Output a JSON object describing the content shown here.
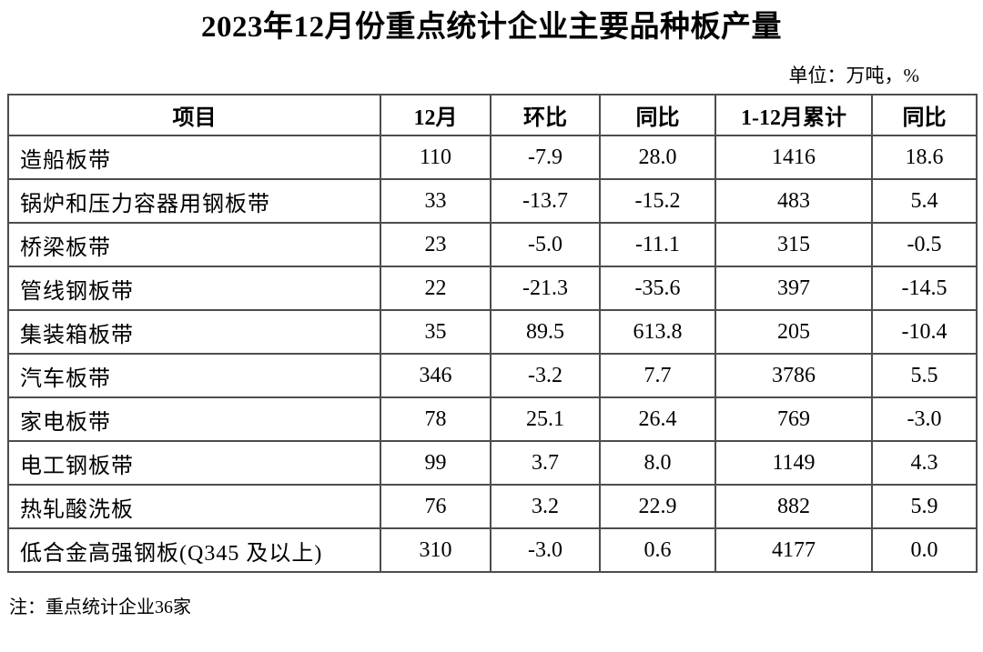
{
  "title": "2023年12月份重点统计企业主要品种板产量",
  "unit_note": "单位：万吨，%",
  "table": {
    "headers": [
      "项目",
      "12月",
      "环比",
      "同比",
      "1-12月累计",
      "同比"
    ],
    "rows": [
      [
        "造船板带",
        "110",
        "-7.9",
        "28.0",
        "1416",
        "18.6"
      ],
      [
        "锅炉和压力容器用钢板带",
        "33",
        "-13.7",
        "-15.2",
        "483",
        "5.4"
      ],
      [
        "桥梁板带",
        "23",
        "-5.0",
        "-11.1",
        "315",
        "-0.5"
      ],
      [
        "管线钢板带",
        "22",
        "-21.3",
        "-35.6",
        "397",
        "-14.5"
      ],
      [
        "集装箱板带",
        "35",
        "89.5",
        "613.8",
        "205",
        "-10.4"
      ],
      [
        "汽车板带",
        "346",
        "-3.2",
        "7.7",
        "3786",
        "5.5"
      ],
      [
        "家电板带",
        "78",
        "25.1",
        "26.4",
        "769",
        "-3.0"
      ],
      [
        "电工钢板带",
        "99",
        "3.7",
        "8.0",
        "1149",
        "4.3"
      ],
      [
        "热轧酸洗板",
        "76",
        "3.2",
        "22.9",
        "882",
        "5.9"
      ],
      [
        "低合金高强钢板(Q345 及以上)",
        "310",
        "-3.0",
        "0.6",
        "4177",
        "0.0"
      ]
    ]
  },
  "footnote": "注：重点统计企业36家",
  "colors": {
    "border": "#4d4d4d",
    "text": "#000000",
    "background": "#ffffff"
  }
}
